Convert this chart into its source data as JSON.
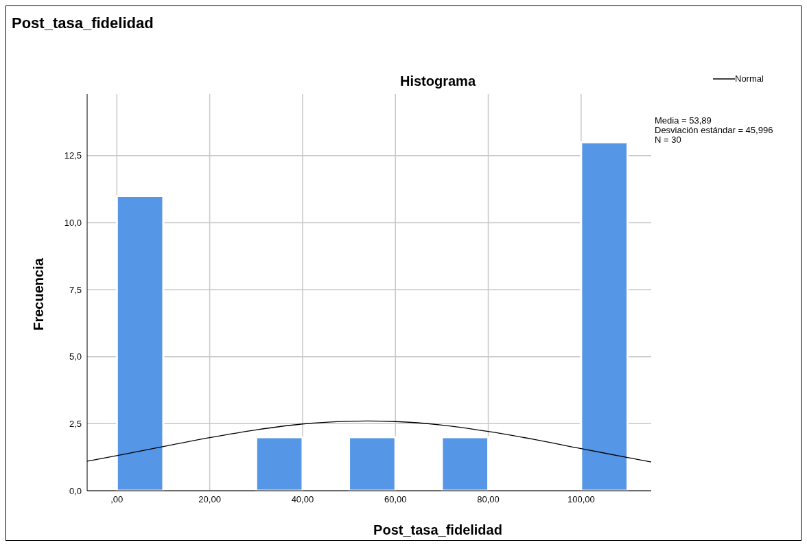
{
  "chart_data": {
    "type": "histogram",
    "title": "Post_tasa_fidelidad",
    "subtitle": "Histograma",
    "xlabel": "Post_tasa_fidelidad",
    "ylabel": "Frecuencia",
    "bins": [
      0,
      10,
      20,
      30,
      40,
      50,
      60,
      70,
      80,
      90,
      100,
      110
    ],
    "values": [
      11,
      0,
      0,
      2,
      0,
      2,
      0,
      2,
      0,
      0,
      13
    ],
    "color": "#5596e6",
    "series": [
      {
        "name": "Normal",
        "type": "line",
        "color": "#000000",
        "x": [
          -6.4,
          0,
          10,
          20,
          30,
          40,
          50,
          53.89,
          60,
          70,
          80,
          90,
          100,
          110,
          115.1
        ],
        "values": [
          1.1,
          1.31,
          1.65,
          1.98,
          2.27,
          2.49,
          2.59,
          2.6,
          2.58,
          2.45,
          2.21,
          1.91,
          1.57,
          1.24,
          1.07
        ]
      }
    ],
    "xlim": [
      -6.4,
      115.1
    ],
    "ylim": [
      0,
      14.8
    ],
    "xticks": [
      {
        "value": 0,
        "label": ",00"
      },
      {
        "value": 20,
        "label": "20,00"
      },
      {
        "value": 40,
        "label": "40,00"
      },
      {
        "value": 60,
        "label": "60,00"
      },
      {
        "value": 80,
        "label": "80,00"
      },
      {
        "value": 100,
        "label": "100,00"
      }
    ],
    "yticks": [
      {
        "value": 0,
        "label": "0,0"
      },
      {
        "value": 2.5,
        "label": "2,5"
      },
      {
        "value": 5,
        "label": "5,0"
      },
      {
        "value": 7.5,
        "label": "7,5"
      },
      {
        "value": 10,
        "label": "10,0"
      },
      {
        "value": 12.5,
        "label": "12,5"
      }
    ],
    "grid": true,
    "legend": "top right",
    "marker": "none",
    "line_style": "solid",
    "annotations": [
      "Media = 53,89",
      "Desviación estándar = 45,996",
      "N = 30"
    ]
  }
}
